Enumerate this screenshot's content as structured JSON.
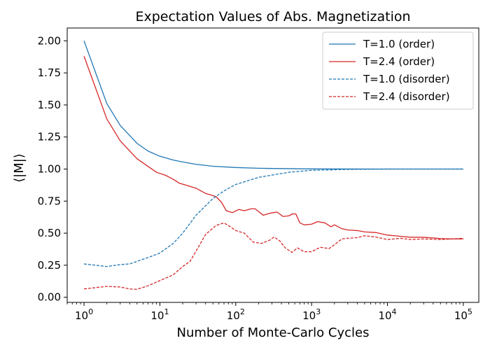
{
  "chart_data": {
    "type": "line",
    "title": "Expectation Values of Abs. Magnetization",
    "xlabel": "Number of Monte-Carlo Cycles",
    "ylabel": "⟨|M|⟩",
    "xscale": "log",
    "xlim": [
      0.6,
      160000
    ],
    "ylim": [
      -0.04,
      2.1
    ],
    "x_ticks": [
      {
        "value": 1,
        "base": "10",
        "exp": "0"
      },
      {
        "value": 10,
        "base": "10",
        "exp": "1"
      },
      {
        "value": 100,
        "base": "10",
        "exp": "2"
      },
      {
        "value": 1000,
        "base": "10",
        "exp": "3"
      },
      {
        "value": 10000,
        "base": "10",
        "exp": "4"
      },
      {
        "value": 100000,
        "base": "10",
        "exp": "5"
      }
    ],
    "y_ticks": [
      {
        "value": 0.0,
        "label": "0.00"
      },
      {
        "value": 0.25,
        "label": "0.25"
      },
      {
        "value": 0.5,
        "label": "0.50"
      },
      {
        "value": 0.75,
        "label": "0.75"
      },
      {
        "value": 1.0,
        "label": "1.00"
      },
      {
        "value": 1.25,
        "label": "1.25"
      },
      {
        "value": 1.5,
        "label": "1.50"
      },
      {
        "value": 1.75,
        "label": "1.75"
      },
      {
        "value": 2.0,
        "label": "2.00"
      }
    ],
    "grid": false,
    "legend_position": "top-right",
    "series": [
      {
        "name": "T=1.0 (order)",
        "color": "#1f77b4",
        "dash": "solid",
        "points": [
          [
            1,
            2.0
          ],
          [
            2,
            1.51
          ],
          [
            3,
            1.34
          ],
          [
            5,
            1.2
          ],
          [
            7,
            1.14
          ],
          [
            10,
            1.1
          ],
          [
            15,
            1.07
          ],
          [
            20,
            1.055
          ],
          [
            30,
            1.037
          ],
          [
            50,
            1.022
          ],
          [
            100,
            1.012
          ],
          [
            200,
            1.006
          ],
          [
            500,
            1.003
          ],
          [
            1000,
            1.001
          ],
          [
            10000,
            1.0
          ],
          [
            100000,
            1.0
          ]
        ]
      },
      {
        "name": "T=2.4 (order)",
        "color": "#d62728",
        "dash": "solid",
        "points": [
          [
            1,
            1.88
          ],
          [
            2,
            1.39
          ],
          [
            3,
            1.22
          ],
          [
            5,
            1.08
          ],
          [
            7,
            1.02
          ],
          [
            9,
            0.975
          ],
          [
            12,
            0.95
          ],
          [
            15,
            0.92
          ],
          [
            18,
            0.89
          ],
          [
            25,
            0.865
          ],
          [
            30,
            0.85
          ],
          [
            40,
            0.81
          ],
          [
            55,
            0.785
          ],
          [
            65,
            0.74
          ],
          [
            75,
            0.675
          ],
          [
            90,
            0.66
          ],
          [
            110,
            0.685
          ],
          [
            130,
            0.675
          ],
          [
            160,
            0.69
          ],
          [
            180,
            0.69
          ],
          [
            230,
            0.64
          ],
          [
            280,
            0.655
          ],
          [
            350,
            0.665
          ],
          [
            420,
            0.63
          ],
          [
            500,
            0.635
          ],
          [
            560,
            0.65
          ],
          [
            620,
            0.65
          ],
          [
            700,
            0.58
          ],
          [
            800,
            0.565
          ],
          [
            1000,
            0.57
          ],
          [
            1200,
            0.59
          ],
          [
            1500,
            0.58
          ],
          [
            1800,
            0.55
          ],
          [
            2000,
            0.565
          ],
          [
            2500,
            0.535
          ],
          [
            3000,
            0.525
          ],
          [
            4000,
            0.52
          ],
          [
            5000,
            0.51
          ],
          [
            7000,
            0.505
          ],
          [
            10000,
            0.485
          ],
          [
            15000,
            0.475
          ],
          [
            20000,
            0.468
          ],
          [
            30000,
            0.468
          ],
          [
            50000,
            0.458
          ],
          [
            70000,
            0.455
          ],
          [
            100000,
            0.455
          ]
        ]
      },
      {
        "name": "T=1.0 (disorder)",
        "color": "#1f77b4",
        "dash": "dashed",
        "points": [
          [
            1,
            0.26
          ],
          [
            2,
            0.24
          ],
          [
            3,
            0.255
          ],
          [
            4,
            0.26
          ],
          [
            5,
            0.28
          ],
          [
            7,
            0.31
          ],
          [
            10,
            0.345
          ],
          [
            15,
            0.42
          ],
          [
            20,
            0.5
          ],
          [
            30,
            0.64
          ],
          [
            50,
            0.77
          ],
          [
            70,
            0.83
          ],
          [
            100,
            0.88
          ],
          [
            200,
            0.935
          ],
          [
            500,
            0.975
          ],
          [
            1000,
            0.99
          ],
          [
            3000,
            0.997
          ],
          [
            10000,
            1.0
          ],
          [
            100000,
            1.0
          ]
        ]
      },
      {
        "name": "T=2.4 (disorder)",
        "color": "#d62728",
        "dash": "dashed",
        "points": [
          [
            1,
            0.065
          ],
          [
            2,
            0.085
          ],
          [
            3,
            0.08
          ],
          [
            4,
            0.065
          ],
          [
            5,
            0.062
          ],
          [
            7,
            0.09
          ],
          [
            10,
            0.13
          ],
          [
            15,
            0.175
          ],
          [
            20,
            0.24
          ],
          [
            25,
            0.28
          ],
          [
            30,
            0.36
          ],
          [
            40,
            0.49
          ],
          [
            55,
            0.56
          ],
          [
            70,
            0.58
          ],
          [
            85,
            0.55
          ],
          [
            100,
            0.52
          ],
          [
            130,
            0.5
          ],
          [
            170,
            0.43
          ],
          [
            220,
            0.42
          ],
          [
            280,
            0.445
          ],
          [
            320,
            0.47
          ],
          [
            380,
            0.44
          ],
          [
            450,
            0.385
          ],
          [
            550,
            0.35
          ],
          [
            650,
            0.385
          ],
          [
            800,
            0.355
          ],
          [
            1000,
            0.355
          ],
          [
            1300,
            0.39
          ],
          [
            1700,
            0.38
          ],
          [
            2000,
            0.41
          ],
          [
            2500,
            0.455
          ],
          [
            3000,
            0.46
          ],
          [
            4000,
            0.465
          ],
          [
            5000,
            0.48
          ],
          [
            7000,
            0.47
          ],
          [
            10000,
            0.45
          ],
          [
            15000,
            0.46
          ],
          [
            20000,
            0.45
          ],
          [
            30000,
            0.455
          ],
          [
            50000,
            0.45
          ],
          [
            100000,
            0.46
          ]
        ]
      }
    ]
  }
}
